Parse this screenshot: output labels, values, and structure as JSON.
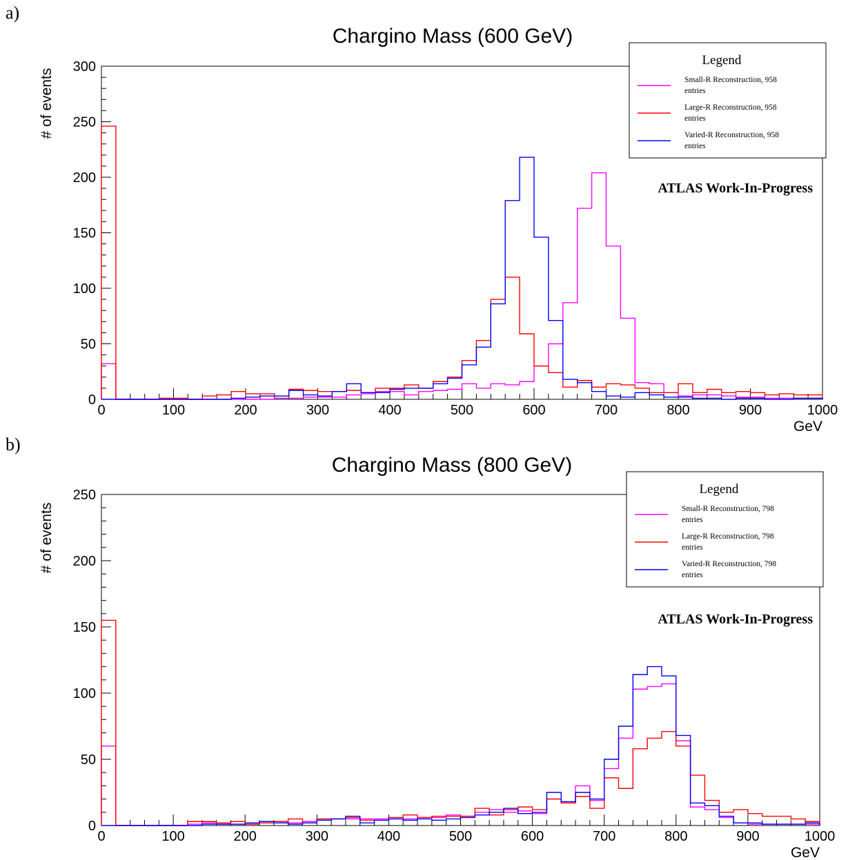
{
  "panels": [
    {
      "label": "a)"
    },
    {
      "label": "b)"
    }
  ],
  "chart_data": [
    {
      "type": "histogram",
      "title": "Chargino Mass (600 GeV)",
      "xlabel": "GeV",
      "ylabel": "# of events",
      "xlim": [
        0,
        1000
      ],
      "ylim": [
        0,
        300
      ],
      "x_ticks": [
        0,
        100,
        200,
        300,
        400,
        500,
        600,
        700,
        800,
        900,
        1000
      ],
      "y_ticks": [
        0,
        50,
        100,
        150,
        200,
        250,
        300
      ],
      "bin_width": 20,
      "legend": {
        "title": "Legend",
        "position": "top-right"
      },
      "annotation": "ATLAS Work-In-Progress",
      "series": [
        {
          "name": "Small-R Reconstruction, 958 entries",
          "color": "#ff00ff",
          "values": [
            32,
            0,
            0,
            0,
            0,
            0,
            0,
            0,
            0,
            0,
            0,
            0,
            1,
            1,
            2,
            2,
            2,
            4,
            5,
            7,
            7,
            4,
            7,
            8,
            9,
            14,
            10,
            14,
            13,
            16,
            30,
            50,
            87,
            172,
            204,
            138,
            73,
            15,
            14,
            6,
            3,
            4,
            4,
            3,
            2,
            2,
            1,
            1,
            1,
            1
          ]
        },
        {
          "name": "Large-R Reconstruction, 958 entries",
          "color": "#ff0000",
          "values": [
            246,
            0,
            0,
            0,
            1,
            1,
            0,
            3,
            4,
            7,
            5,
            5,
            3,
            9,
            8,
            7,
            7,
            8,
            6,
            10,
            10,
            13,
            10,
            16,
            20,
            35,
            53,
            90,
            110,
            59,
            30,
            24,
            11,
            17,
            11,
            14,
            13,
            10,
            6,
            6,
            14,
            6,
            9,
            6,
            7,
            6,
            4,
            5,
            4,
            4
          ]
        },
        {
          "name": "Varied-R Reconstruction, 958 entries",
          "color": "#0000ff",
          "values": [
            0,
            0,
            0,
            0,
            0,
            0,
            0,
            0,
            0,
            1,
            2,
            3,
            3,
            8,
            4,
            3,
            7,
            14,
            6,
            6,
            9,
            10,
            10,
            14,
            19,
            31,
            47,
            86,
            179,
            218,
            146,
            71,
            18,
            15,
            7,
            3,
            2,
            6,
            4,
            2,
            2,
            1,
            1,
            0,
            1,
            1,
            0,
            0,
            1,
            1
          ]
        }
      ]
    },
    {
      "type": "histogram",
      "title": "Chargino Mass (800 GeV)",
      "xlabel": "GeV",
      "ylabel": "# of events",
      "xlim": [
        0,
        1000
      ],
      "ylim": [
        0,
        250
      ],
      "x_ticks": [
        0,
        100,
        200,
        300,
        400,
        500,
        600,
        700,
        800,
        900,
        1000
      ],
      "y_ticks": [
        0,
        50,
        100,
        150,
        200,
        250
      ],
      "bin_width": 20,
      "legend": {
        "title": "Legend",
        "position": "top-right"
      },
      "annotation": "ATLAS Work-In-Progress",
      "series": [
        {
          "name": "Small-R Reconstruction, 798 entries",
          "color": "#ff00ff",
          "values": [
            60,
            0,
            0,
            0,
            0,
            0,
            1,
            2,
            1,
            1,
            1,
            2,
            2,
            2,
            3,
            4,
            5,
            5,
            5,
            5,
            6,
            5,
            6,
            6,
            8,
            7,
            10,
            12,
            10,
            11,
            9,
            20,
            17,
            30,
            19,
            43,
            66,
            103,
            105,
            107,
            64,
            14,
            12,
            6,
            2,
            1,
            1,
            1,
            1,
            1
          ]
        },
        {
          "name": "Large-R Reconstruction, 798 entries",
          "color": "#ff0000",
          "values": [
            155,
            0,
            0,
            0,
            0,
            0,
            3,
            3,
            2,
            3,
            1,
            2,
            3,
            5,
            2,
            5,
            5,
            6,
            4,
            4,
            6,
            8,
            6,
            7,
            7,
            7,
            13,
            8,
            12,
            14,
            12,
            20,
            17,
            22,
            13,
            36,
            28,
            58,
            66,
            71,
            60,
            38,
            19,
            10,
            12,
            9,
            7,
            7,
            5,
            3
          ]
        },
        {
          "name": "Varied-R Reconstruction, 798 entries",
          "color": "#0000ff",
          "values": [
            0,
            0,
            0,
            0,
            0,
            0,
            0,
            1,
            1,
            1,
            2,
            3,
            2,
            1,
            2,
            4,
            5,
            7,
            2,
            4,
            5,
            4,
            5,
            4,
            5,
            6,
            8,
            10,
            13,
            9,
            10,
            25,
            18,
            25,
            20,
            50,
            75,
            114,
            120,
            113,
            68,
            17,
            15,
            7,
            2,
            2,
            1,
            1,
            1,
            2
          ]
        }
      ]
    }
  ]
}
